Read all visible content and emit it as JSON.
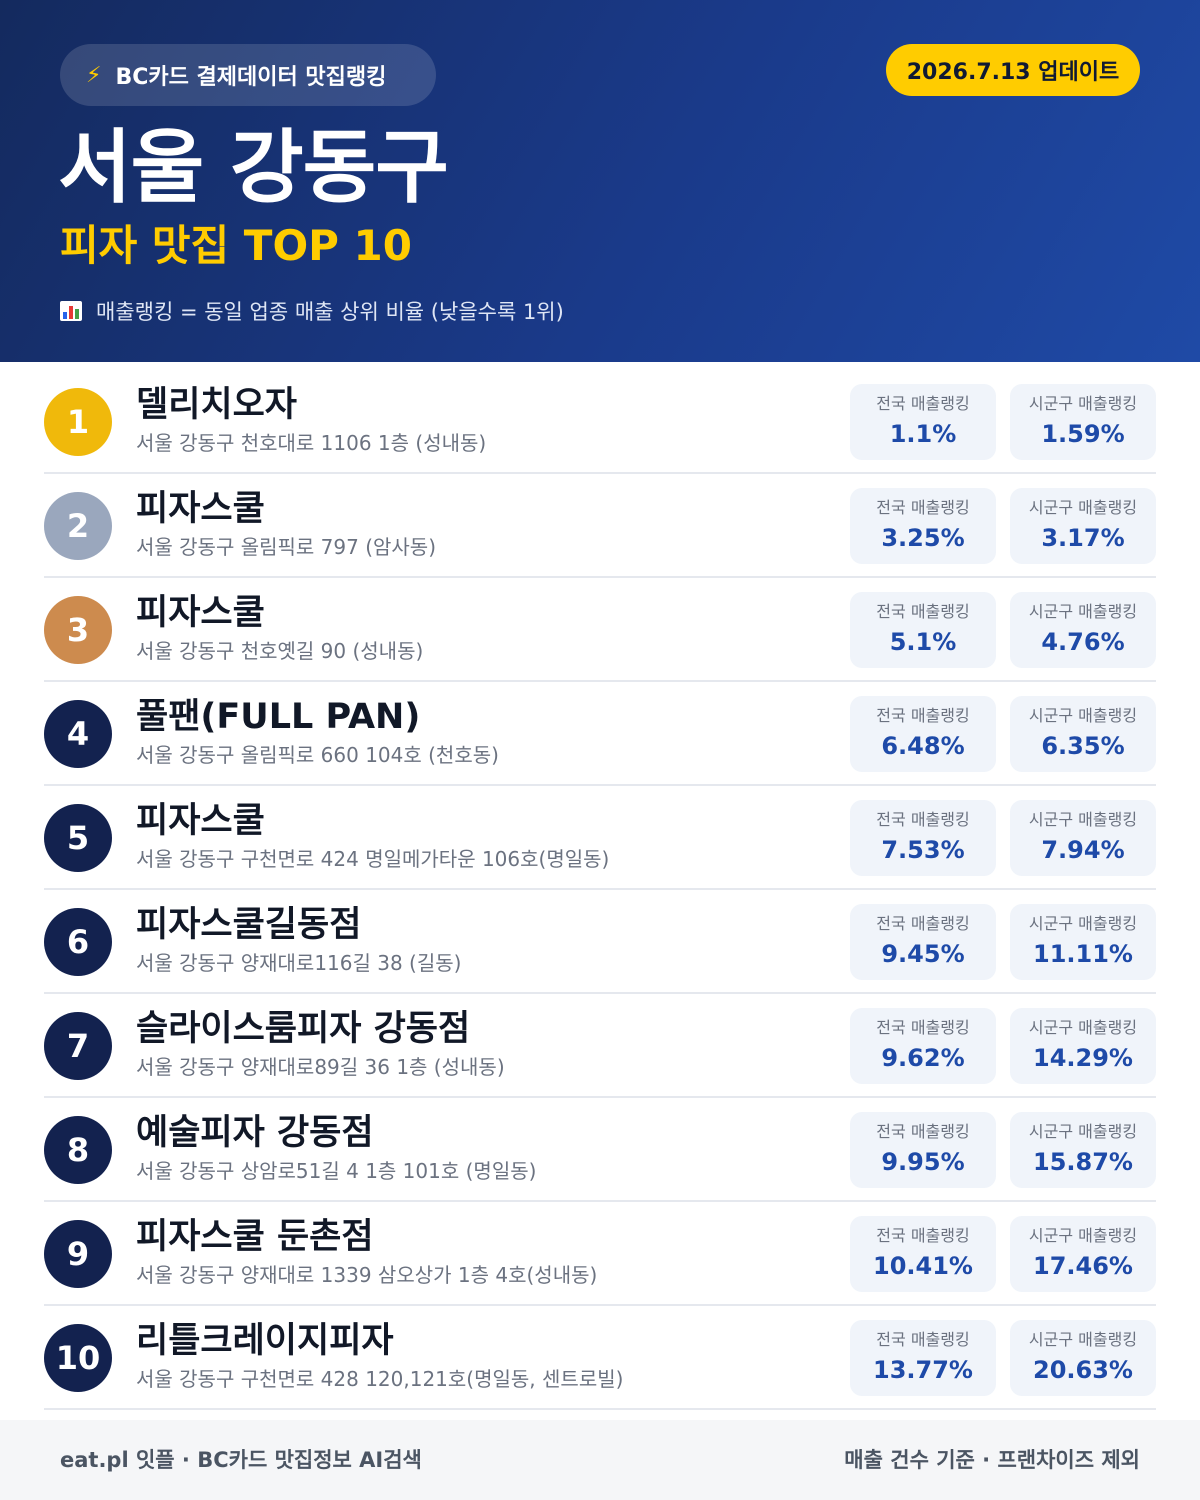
{
  "header": {
    "brand_label": "BC카드 결제데이터 맛집랭킹",
    "brand_icon": "lightning-icon",
    "update_label": "2026.7.13 업데이트",
    "title": "서울 강동구",
    "subtitle": "피자 맛집 TOP 10",
    "note_icon": "bar-chart-icon",
    "note": "매출랭킹 = 동일 업종 매출 상위 비율 (낮을수록 1위)"
  },
  "stat_labels": {
    "national": "전국 매출랭킹",
    "local": "시군구 매출랭킹"
  },
  "rank_colors": {
    "gold": "#f0b90b",
    "silver": "#9aa7bd",
    "bronze": "#cd8b4e",
    "default": "#13224f"
  },
  "restaurants": [
    {
      "rank": "1",
      "name": "델리치오자",
      "address": "서울 강동구 천호대로 1106 1층 (성내동)",
      "national": "1.1%",
      "local": "1.59%"
    },
    {
      "rank": "2",
      "name": "피자스쿨",
      "address": "서울 강동구 올림픽로 797 (암사동)",
      "national": "3.25%",
      "local": "3.17%"
    },
    {
      "rank": "3",
      "name": "피자스쿨",
      "address": "서울 강동구 천호옛길 90 (성내동)",
      "national": "5.1%",
      "local": "4.76%"
    },
    {
      "rank": "4",
      "name": "풀팬(FULL PAN)",
      "address": "서울 강동구 올림픽로 660 104호 (천호동)",
      "national": "6.48%",
      "local": "6.35%"
    },
    {
      "rank": "5",
      "name": "피자스쿨",
      "address": "서울 강동구 구천면로 424 명일메가타운 106호(명일동)",
      "national": "7.53%",
      "local": "7.94%"
    },
    {
      "rank": "6",
      "name": "피자스쿨길동점",
      "address": "서울 강동구 양재대로116길 38 (길동)",
      "national": "9.45%",
      "local": "11.11%"
    },
    {
      "rank": "7",
      "name": "슬라이스룸피자 강동점",
      "address": "서울 강동구 양재대로89길 36 1층 (성내동)",
      "national": "9.62%",
      "local": "14.29%"
    },
    {
      "rank": "8",
      "name": "예술피자 강동점",
      "address": "서울 강동구 상암로51길 4 1층 101호 (명일동)",
      "national": "9.95%",
      "local": "15.87%"
    },
    {
      "rank": "9",
      "name": "피자스쿨 둔촌점",
      "address": "서울 강동구 양재대로 1339 삼오상가 1층 4호(성내동)",
      "national": "10.41%",
      "local": "17.46%"
    },
    {
      "rank": "10",
      "name": "리틀크레이지피자",
      "address": "서울 강동구 구천면로 428 120,121호(명일동, 센트로빌)",
      "national": "13.77%",
      "local": "20.63%"
    }
  ],
  "footer": {
    "left": "eat.pl 잇플 · BC카드 맛집정보 AI검색",
    "right": "매출 건수 기준 · 프랜차이즈 제외"
  }
}
